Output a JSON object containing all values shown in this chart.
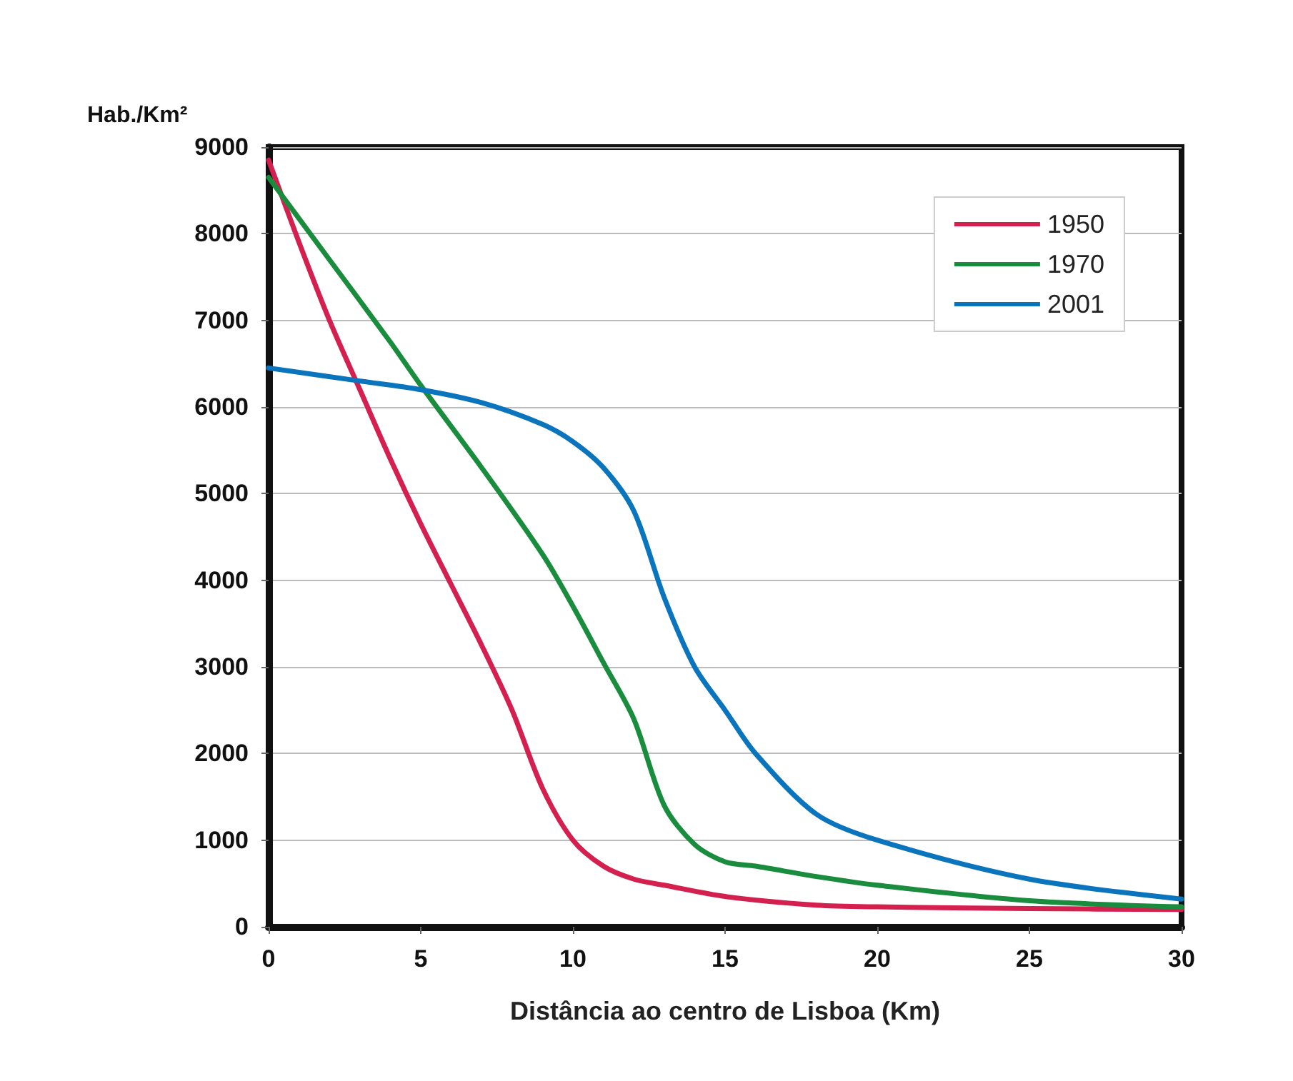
{
  "chart_data": {
    "type": "line",
    "ylabel": "Hab./Km²",
    "xlabel": "Distância ao centro de Lisboa (Km)",
    "xlim": [
      0,
      30
    ],
    "xticks": [
      0,
      5,
      10,
      15,
      20,
      25,
      30
    ],
    "ylim": [
      0,
      9000
    ],
    "yticks": [
      0,
      1000,
      2000,
      3000,
      4000,
      5000,
      6000,
      7000,
      8000,
      9000
    ],
    "grid": "y",
    "legend": "top right",
    "marker": "none",
    "line_style": "solid",
    "series": [
      {
        "name": "1950",
        "color": "#d4204f",
        "x": [
          0,
          1,
          2,
          3,
          4,
          5,
          6,
          7,
          8,
          9,
          10,
          11,
          12,
          13,
          15,
          18,
          20,
          25,
          30
        ],
        "values": [
          8850,
          7900,
          7000,
          6200,
          5400,
          4650,
          3950,
          3250,
          2500,
          1600,
          1000,
          700,
          550,
          480,
          350,
          250,
          230,
          210,
          200
        ]
      },
      {
        "name": "1970",
        "color": "#1a8c3e",
        "x": [
          0,
          2,
          4,
          5,
          7,
          9,
          10,
          11,
          12,
          13,
          14,
          15,
          16,
          18,
          20,
          25,
          30
        ],
        "values": [
          8650,
          7700,
          6750,
          6250,
          5300,
          4300,
          3700,
          3050,
          2400,
          1400,
          950,
          750,
          700,
          580,
          480,
          300,
          230
        ]
      },
      {
        "name": "2001",
        "color": "#0a74bd",
        "x": [
          0,
          3,
          5,
          7,
          9,
          10,
          11,
          12,
          13,
          14,
          15,
          16,
          18,
          20,
          25,
          30
        ],
        "values": [
          6450,
          6300,
          6200,
          6050,
          5800,
          5600,
          5300,
          4800,
          3800,
          3000,
          2500,
          2000,
          1300,
          1000,
          550,
          320
        ]
      }
    ]
  }
}
